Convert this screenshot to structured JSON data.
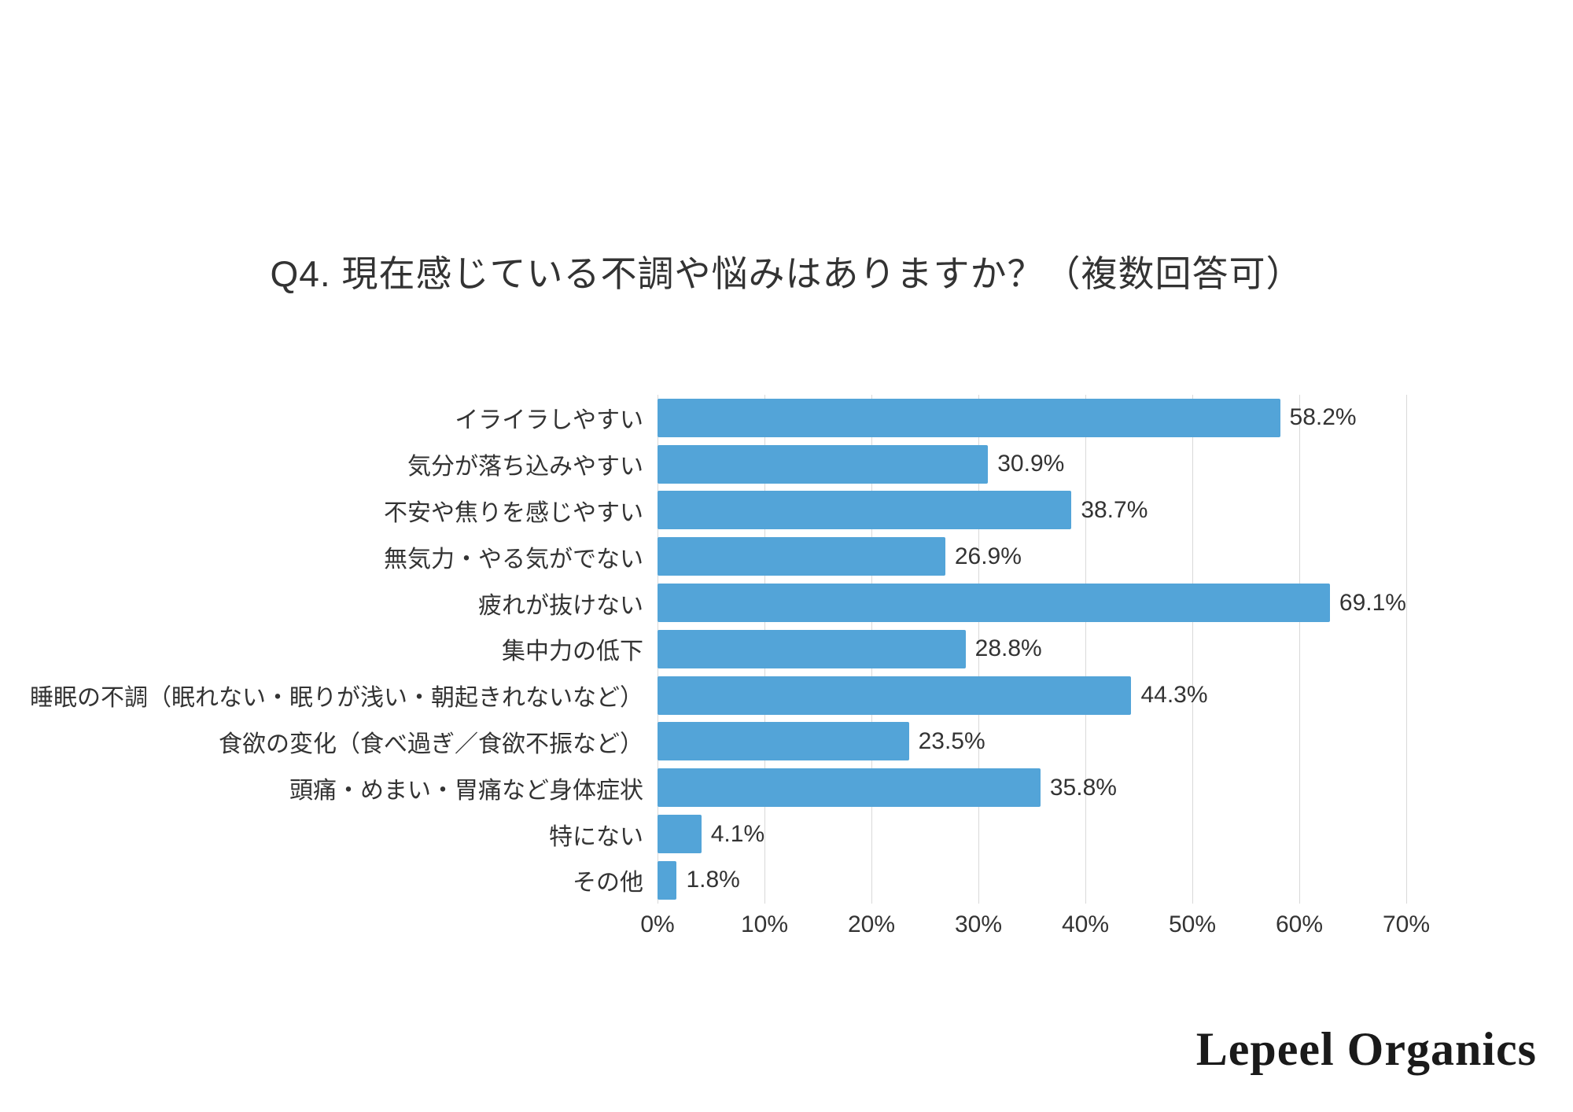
{
  "chart": {
    "title": "Q4. 現在感じている不調や悩みはありますか？（複数回答可）"
  },
  "chart_data": {
    "type": "bar",
    "orientation": "horizontal",
    "title": "Q4. 現在感じている不調や悩みはありますか？（複数回答可）",
    "categories": [
      "イライラしやすい",
      "気分が落ち込みやすい",
      "不安や焦りを感じやすい",
      "無気力・やる気がでない",
      "疲れが抜けない",
      "集中力の低下",
      "睡眠の不調（眠れない・眠りが浅い・朝起きれないなど）",
      "食欲の変化（食べ過ぎ／食欲不振など）",
      "頭痛・めまい・胃痛など身体症状",
      "特にない",
      "その他"
    ],
    "values": [
      58.2,
      30.9,
      38.7,
      26.9,
      69.1,
      28.8,
      44.3,
      23.5,
      35.8,
      4.1,
      1.8
    ],
    "value_labels": [
      "58.2%",
      "30.9%",
      "38.7%",
      "26.9%",
      "69.1%",
      "28.8%",
      "44.3%",
      "23.5%",
      "35.8%",
      "4.1%",
      "1.8%"
    ],
    "x_ticks": [
      "0%",
      "10%",
      "20%",
      "30%",
      "40%",
      "50%",
      "60%",
      "70%"
    ],
    "xlim": [
      0,
      70
    ],
    "xlabel": "",
    "ylabel": "",
    "grid": true,
    "legend": false,
    "bar_color": "#53A4D8",
    "gridline_color": "#d9d9d9",
    "text_color": "#333333"
  },
  "footer": {
    "logo_text": "Lepeel Organics"
  }
}
